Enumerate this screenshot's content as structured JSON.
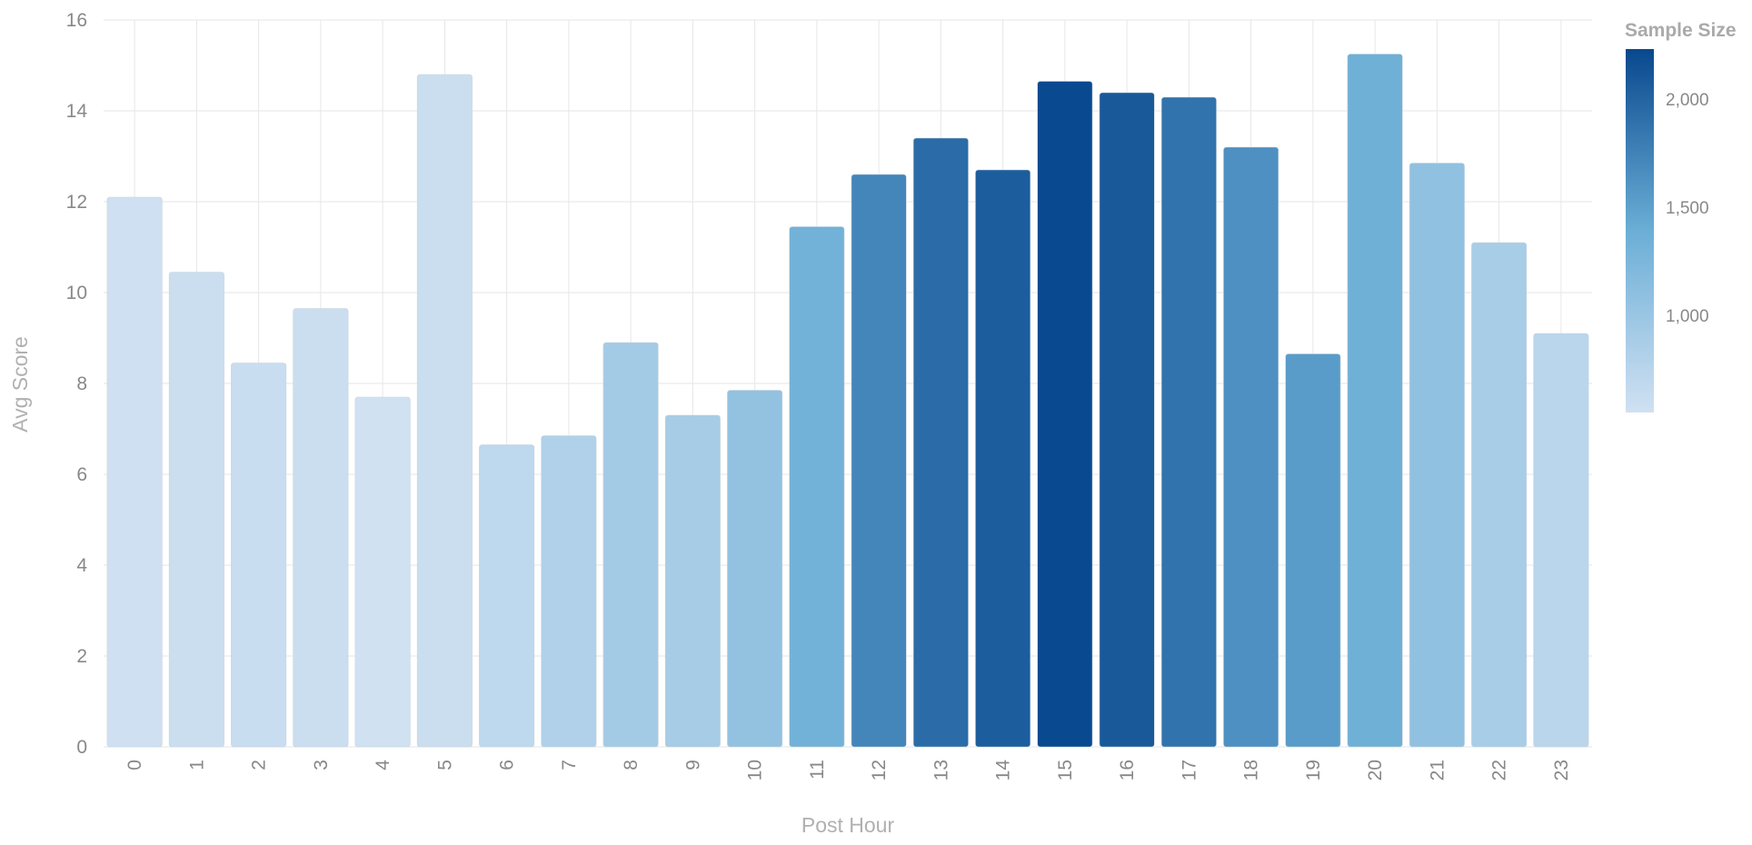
{
  "chart_data": {
    "type": "bar",
    "title": "",
    "xlabel": "Post Hour",
    "ylabel": "Avg Score",
    "ylim": [
      0,
      16
    ],
    "yticks": [
      0,
      2,
      4,
      6,
      8,
      10,
      12,
      14,
      16
    ],
    "grid": true,
    "categories": [
      "0",
      "1",
      "2",
      "3",
      "4",
      "5",
      "6",
      "7",
      "8",
      "9",
      "10",
      "11",
      "12",
      "13",
      "14",
      "15",
      "16",
      "17",
      "18",
      "19",
      "20",
      "21",
      "22",
      "23"
    ],
    "values": [
      12.1,
      10.45,
      8.45,
      9.65,
      7.7,
      14.8,
      6.65,
      6.85,
      8.9,
      7.3,
      7.85,
      11.45,
      12.6,
      13.4,
      12.7,
      14.65,
      14.4,
      14.3,
      13.2,
      8.65,
      15.25,
      12.85,
      11.1,
      9.1
    ],
    "sample_size": [
      560,
      600,
      610,
      600,
      540,
      600,
      700,
      820,
      920,
      900,
      1060,
      1320,
      1720,
      1930,
      2060,
      2220,
      2090,
      1880,
      1640,
      1540,
      1360,
      1070,
      880,
      730
    ],
    "legend": {
      "title": "Sample Size",
      "position": "top-right",
      "ticks": [
        1000,
        1500,
        2000
      ],
      "tick_labels": [
        "1,000",
        "1,500",
        "2,000"
      ],
      "range": [
        550,
        2230
      ],
      "color_low": "#d0e1f2",
      "color_high": "#08488e"
    }
  }
}
